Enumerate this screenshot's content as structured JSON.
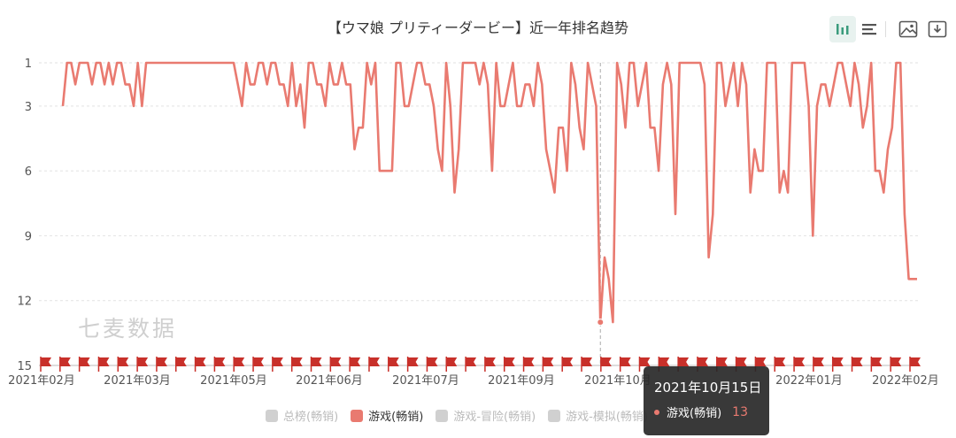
{
  "chart_data": {
    "type": "line",
    "title": "【ウマ娘 プリティーダービー】近一年排名趋势",
    "xlabel": "",
    "ylabel": "",
    "y_axis_inverted": true,
    "ylim": [
      1,
      15
    ],
    "y_ticks": [
      "1",
      "3",
      "6",
      "9",
      "12",
      "15"
    ],
    "x_tick_labels": [
      "2021年02月",
      "2021年03月",
      "2021年05月",
      "2021年06月",
      "2021年07月",
      "2021年09月",
      "2021年10月",
      "2022年01月",
      "2022年02月"
    ],
    "grid": "horizontal-dashed",
    "series": [
      {
        "name": "游戏(畅销)",
        "color": "#e97a70",
        "values": [
          3,
          1,
          1,
          2,
          1,
          1,
          1,
          2,
          1,
          1,
          2,
          1,
          2,
          1,
          1,
          2,
          2,
          3,
          1,
          3,
          1,
          1,
          1,
          1,
          1,
          1,
          1,
          1,
          1,
          1,
          1,
          1,
          1,
          1,
          1,
          1,
          1,
          1,
          1,
          1,
          1,
          1,
          2,
          3,
          1,
          2,
          2,
          1,
          1,
          2,
          1,
          1,
          2,
          2,
          3,
          1,
          3,
          2,
          4,
          1,
          1,
          2,
          2,
          3,
          1,
          2,
          2,
          1,
          2,
          2,
          5,
          4,
          4,
          1,
          2,
          1,
          6,
          6,
          6,
          6,
          1,
          1,
          3,
          3,
          2,
          1,
          1,
          2,
          2,
          3,
          5,
          6,
          1,
          3,
          7,
          5,
          1,
          1,
          1,
          1,
          2,
          1,
          2,
          6,
          1,
          3,
          3,
          2,
          1,
          3,
          3,
          2,
          2,
          3,
          1,
          2,
          5,
          6,
          7,
          4,
          4,
          6,
          1,
          2,
          4,
          5,
          1,
          2,
          3,
          13,
          10,
          11,
          13,
          1,
          2,
          4,
          1,
          1,
          3,
          2,
          1,
          4,
          4,
          6,
          2,
          1,
          2,
          8,
          1,
          1,
          1,
          1,
          1,
          1,
          2,
          10,
          8,
          1,
          1,
          3,
          2,
          1,
          3,
          1,
          2,
          7,
          5,
          6,
          6,
          1,
          1,
          1,
          7,
          6,
          7,
          1,
          1,
          1,
          1,
          3,
          9,
          3,
          2,
          2,
          3,
          2,
          1,
          1,
          2,
          3,
          1,
          2,
          4,
          3,
          1,
          6,
          6,
          7,
          5,
          4,
          1,
          1,
          8,
          11,
          11,
          11
        ]
      }
    ],
    "tooltip": {
      "date": "2021年10月15日",
      "series": "游戏(畅销)",
      "value": "13"
    }
  },
  "legend": [
    {
      "label": "总榜(畅销)",
      "active": false
    },
    {
      "label": "游戏(畅销)",
      "active": true
    },
    {
      "label": "游戏-冒险(畅销)",
      "active": false
    },
    {
      "label": "游戏-模拟(畅销)",
      "active": false
    }
  ],
  "watermark": "七麦数据",
  "flag_color": "#c8302a",
  "flag_count": 46,
  "toolbar": {
    "icons": [
      "bar-chart-icon",
      "list-icon",
      "image-icon",
      "download-icon"
    ]
  }
}
